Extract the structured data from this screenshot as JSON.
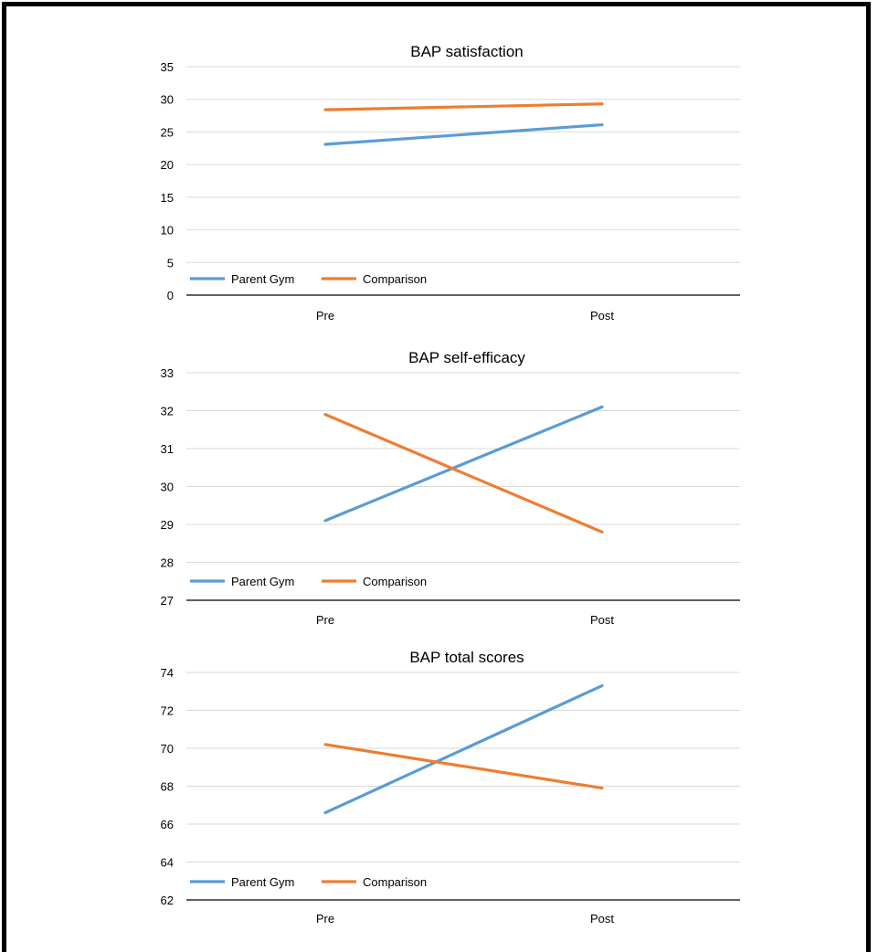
{
  "chart_data": [
    {
      "type": "line",
      "title": "BAP satisfaction",
      "categories": [
        "Pre",
        "Post"
      ],
      "ylim": [
        0,
        35
      ],
      "yticks": [
        "0",
        "5",
        "10",
        "15",
        "20",
        "25",
        "30",
        "35"
      ],
      "grid": true,
      "legend_position": "bottom-left",
      "series": [
        {
          "name": "Parent Gym",
          "values": [
            23.1,
            26.1
          ],
          "color": "#5b9bd5"
        },
        {
          "name": "Comparison",
          "values": [
            28.4,
            29.3
          ],
          "color": "#ed7d31"
        }
      ]
    },
    {
      "type": "line",
      "title": "BAP self-efficacy",
      "categories": [
        "Pre",
        "Post"
      ],
      "ylim": [
        27,
        33
      ],
      "yticks": [
        "27",
        "28",
        "29",
        "30",
        "31",
        "32",
        "33"
      ],
      "grid": true,
      "legend_position": "bottom-left",
      "series": [
        {
          "name": "Parent Gym",
          "values": [
            29.1,
            32.1
          ],
          "color": "#5b9bd5"
        },
        {
          "name": "Comparison",
          "values": [
            31.9,
            28.8
          ],
          "color": "#ed7d31"
        }
      ]
    },
    {
      "type": "line",
      "title": "BAP total scores",
      "categories": [
        "Pre",
        "Post"
      ],
      "ylim": [
        62,
        74
      ],
      "yticks": [
        "62",
        "64",
        "66",
        "68",
        "70",
        "72",
        "74"
      ],
      "grid": true,
      "legend_position": "bottom-left",
      "series": [
        {
          "name": "Parent Gym",
          "values": [
            66.6,
            73.3
          ],
          "color": "#5b9bd5"
        },
        {
          "name": "Comparison",
          "values": [
            70.2,
            67.9
          ],
          "color": "#ed7d31"
        }
      ]
    }
  ]
}
